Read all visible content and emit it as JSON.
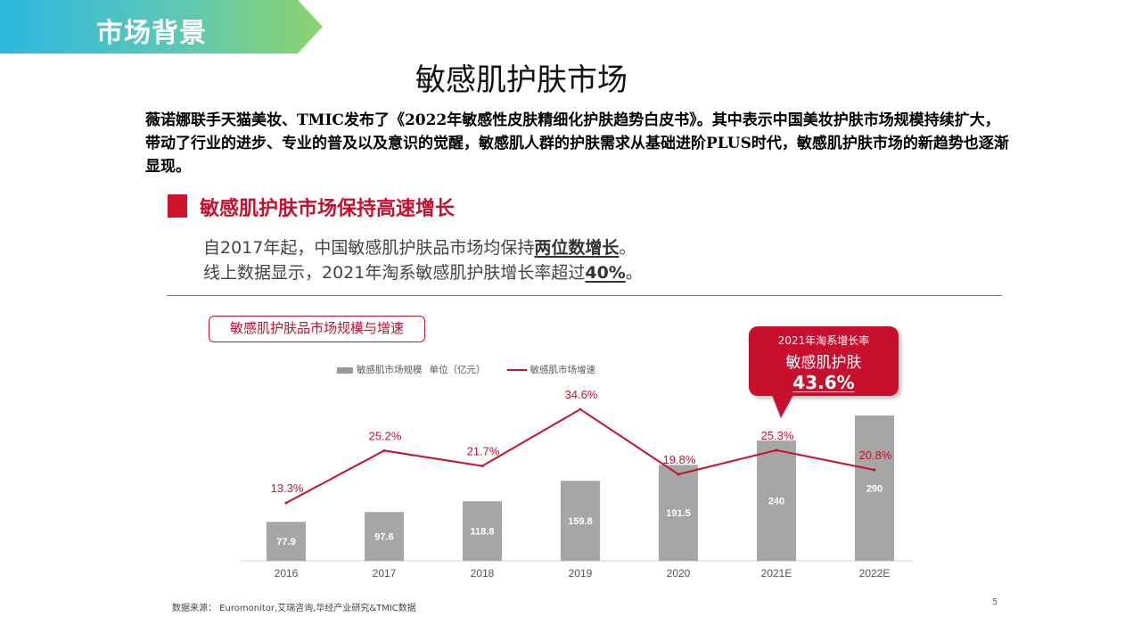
{
  "header": {
    "banner_label": "市场背景",
    "title": "敏感肌护肤市场"
  },
  "intro": "薇诺娜联手天猫美妆、TMIC发布了《2022年敏感性皮肤精细化护肤趋势白皮书》。其中表示中国美妆护肤市场规模持续扩大，带动了行业的进步、专业的普及以及意识的觉醒，敏感肌人群的护肤需求从基础进阶PLUS时代，敏感肌护肤市场的新趋势也逐渐显现。",
  "section": {
    "title": "敏感肌护肤市场保持高速增长",
    "line1_pre": "自2017年起，中国敏感肌护肤品市场均保持",
    "line1_bold": "两位数增长",
    "line1_post": "。",
    "line2_pre": "线上数据显示，2021年淘系敏感肌护肤增长率超过",
    "line2_bold": "40%",
    "line2_post": "。"
  },
  "chart_label": "敏感肌护肤品市场规模与增速",
  "legend": {
    "bar": "敏感肌市场规模",
    "unit": "单位（亿元）",
    "line": "敏感肌市场增速"
  },
  "callout": {
    "line1": "2021年淘系增长率",
    "line2": "敏感肌护肤",
    "line3": "43.6%"
  },
  "colors": {
    "accent": "#c8102e",
    "bar": "#a6a6a6",
    "banner_start": "#2cb8e0",
    "banner_end": "#8bd36b"
  },
  "chart_data": {
    "type": "bar",
    "categories": [
      "2016",
      "2017",
      "2018",
      "2019",
      "2020",
      "2021E",
      "2022E"
    ],
    "series": [
      {
        "name": "敏感肌市场规模",
        "type": "bar",
        "values": [
          77.9,
          97.6,
          118.8,
          159.8,
          191.5,
          240,
          290
        ],
        "labels": [
          "77.9",
          "97.6",
          "118.8",
          "159.8",
          "191.5",
          "240",
          "290"
        ]
      },
      {
        "name": "敏感肌市场增速",
        "type": "line",
        "values": [
          13.3,
          25.2,
          21.7,
          34.6,
          19.8,
          25.3,
          20.8
        ],
        "labels": [
          "13.3%",
          "25.2%",
          "21.7%",
          "34.6%",
          "19.8%",
          "25.3%",
          "20.8%"
        ]
      }
    ],
    "ylim_bar": [
      0,
      300
    ],
    "ylim_line": [
      0,
      40
    ],
    "title": "敏感肌护肤品市场规模与增速",
    "xlabel": "",
    "ylabel": "单位（亿元）",
    "grid": false,
    "legend_position": "top"
  },
  "footnote": "数据来源：  Euromonitor,艾瑞咨询,华经产业研究&TMIC数据",
  "page_number": "5"
}
